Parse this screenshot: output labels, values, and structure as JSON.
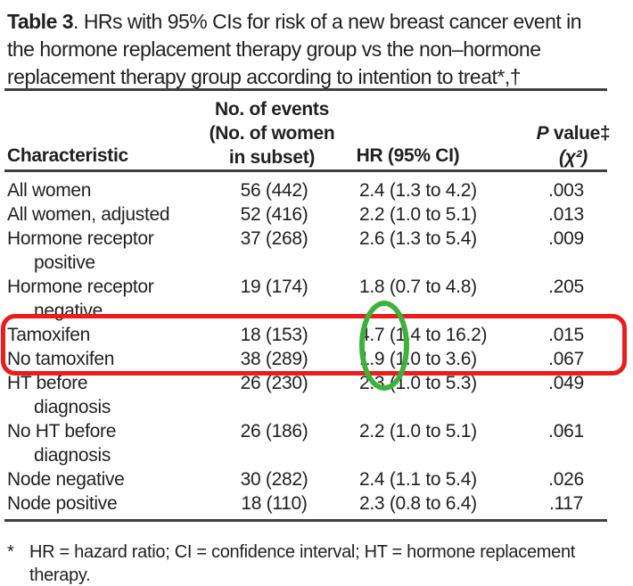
{
  "title": {
    "label": "Table 3",
    "line1_rest": ". HRs with 95% CIs for risk of a new breast cancer event in",
    "line2": "the hormone replacement therapy group vs the non–hormone",
    "line3": "replacement therapy group according to intention to treat*,†"
  },
  "table": {
    "header": {
      "col1": "Characteristic",
      "col2_line1": "No. of events",
      "col2_line2": "(No. of women",
      "col2_line3": "in subset)",
      "col3": "HR (95% CI)",
      "col4_p": "P",
      "col4_rest": " value‡",
      "col4_line2": "(χ²)"
    },
    "lines": [
      {
        "char": "All women",
        "events": "56 (442)",
        "hr": "2.4 (1.3 to 4.2)",
        "p": ".003"
      },
      {
        "char": "All women, adjusted",
        "events": "52 (416)",
        "hr": "2.2 (1.0 to 5.1)",
        "p": ".013"
      },
      {
        "char": "Hormone receptor",
        "events": "37 (268)",
        "hr": "2.6 (1.3 to 5.4)",
        "p": ".009"
      },
      {
        "char": "positive"
      },
      {
        "char": "Hormone receptor",
        "events": "19 (174)",
        "hr": "1.8 (0.7 to 4.8)",
        "p": ".205"
      },
      {
        "char": "negative"
      },
      {
        "char": "Tamoxifen",
        "events": "18 (153)",
        "hr": "4.7 (1.4 to 16.2)",
        "p": ".015"
      },
      {
        "char": "No tamoxifen",
        "events": "38 (289)",
        "hr": "1.9 (1.0 to 3.6)",
        "p": ".067"
      },
      {
        "char": "HT before",
        "events": "26 (230)",
        "hr": "2.3 (1.0 to 5.3)",
        "p": ".049"
      },
      {
        "char": "diagnosis"
      },
      {
        "char": "No HT before",
        "events": "26 (186)",
        "hr": "2.2 (1.0 to 5.1)",
        "p": ".061"
      },
      {
        "char": "diagnosis"
      },
      {
        "char": "Node negative",
        "events": "30 (282)",
        "hr": "2.4 (1.1 to 5.4)",
        "p": ".026"
      },
      {
        "char": "Node positive",
        "events": "18 (110)",
        "hr": "2.3 (0.8 to 6.4)",
        "p": ".117"
      }
    ]
  },
  "footnote": {
    "marker": "*",
    "line1": "HR = hazard ratio; CI = confidence interval; HT = hormone replacement",
    "line2": "therapy."
  },
  "annotations": {
    "red_rectangle_highlights": "Tamoxifen and No tamoxifen rows",
    "green_ellipse_highlights": "HR values 4.7 and 1.9"
  },
  "colors": {
    "annotation_red": "#ea1c1c",
    "annotation_green": "#3cb23c",
    "text_color": "#211f22",
    "rule_color": "#3f3f3f"
  }
}
